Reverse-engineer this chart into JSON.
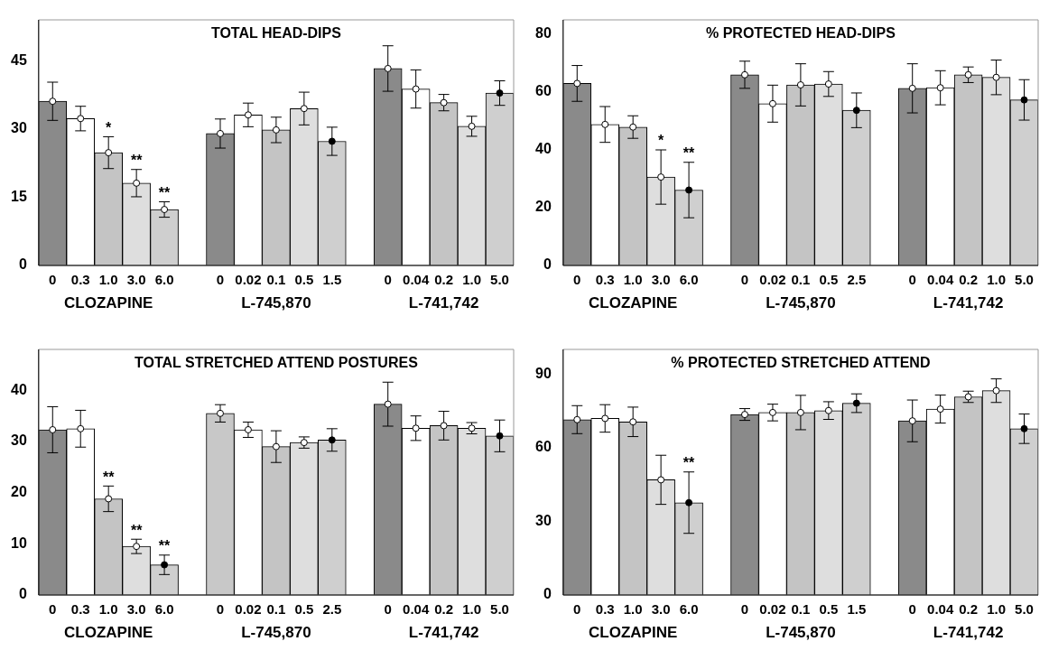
{
  "chart_data": [
    {
      "type": "bar",
      "title": "TOTAL HEAD-DIPS",
      "categories": [
        "0",
        "0.3",
        "1.0",
        "3.0",
        "6.0",
        null,
        "0",
        "0.02",
        "0.1",
        "0.5",
        "1.5",
        null,
        "0",
        "0.04",
        "0.2",
        "1.0",
        "5.0"
      ],
      "series": [
        {
          "type": "bar",
          "colors": [
            "#8a8a8a",
            "#ffffff",
            "#c4c4c4",
            "#dedede",
            "#cfcfcf",
            null,
            "#8a8a8a",
            "#ffffff",
            "#c4c4c4",
            "#dedede",
            "#cfcfcf",
            null,
            "#8a8a8a",
            "#ffffff",
            "#c4c4c4",
            "#dedede",
            "#cfcfcf"
          ],
          "values": [
            36.1,
            32.3,
            24.8,
            18.1,
            12.3,
            null,
            29.0,
            33.1,
            29.8,
            34.5,
            27.3,
            null,
            43.3,
            38.8,
            35.8,
            30.6,
            37.9
          ],
          "errors": [
            4.2,
            2.7,
            3.5,
            3.0,
            1.7,
            null,
            3.2,
            2.6,
            2.8,
            3.6,
            3.1,
            null,
            5.0,
            4.2,
            1.8,
            2.2,
            2.7
          ],
          "value_labels": [
            null,
            null,
            "*",
            "**",
            "**",
            null,
            null,
            null,
            null,
            null,
            null,
            null,
            null,
            null,
            null,
            null,
            null
          ]
        },
        {
          "type": "scatter",
          "colors": [
            "#ffffff",
            "#ffffff",
            "#ffffff",
            "#ffffff",
            "#ffffff",
            null,
            "#ffffff",
            "#ffffff",
            "#ffffff",
            "#ffffff",
            "#000000",
            null,
            "#ffffff",
            "#ffffff",
            "#ffffff",
            "#ffffff",
            "#000000"
          ],
          "values": [
            36.1,
            32.3,
            24.8,
            18.1,
            12.3,
            null,
            29.0,
            33.1,
            29.8,
            34.5,
            27.3,
            null,
            43.3,
            38.8,
            35.8,
            30.6,
            37.9
          ]
        }
      ],
      "ylim": [
        0,
        54
      ],
      "yticks": [
        0,
        15,
        30,
        45
      ],
      "grid": false,
      "legend": false,
      "marker": "circle",
      "annotations": [
        "CLOZAPINE",
        "L-745,870",
        "L-741,742"
      ]
    },
    {
      "type": "bar",
      "title": "% PROTECTED HEAD-DIPS",
      "categories": [
        "0",
        "0.3",
        "1.0",
        "3.0",
        "6.0",
        null,
        "0",
        "0.02",
        "0.1",
        "0.5",
        "2.5",
        null,
        "0",
        "0.04",
        "0.2",
        "1.0",
        "5.0"
      ],
      "series": [
        {
          "type": "bar",
          "colors": [
            "#8a8a8a",
            "#ffffff",
            "#c4c4c4",
            "#dedede",
            "#cfcfcf",
            null,
            "#8a8a8a",
            "#ffffff",
            "#c4c4c4",
            "#dedede",
            "#cfcfcf",
            null,
            "#8a8a8a",
            "#ffffff",
            "#c4c4c4",
            "#dedede",
            "#cfcfcf"
          ],
          "values": [
            63.0,
            48.8,
            47.9,
            30.6,
            26.1,
            null,
            66.0,
            56.0,
            62.5,
            62.8,
            53.7,
            null,
            61.3,
            61.5,
            66.0,
            65.1,
            57.3
          ],
          "errors": [
            6.2,
            6.2,
            3.9,
            9.4,
            9.6,
            null,
            4.7,
            6.4,
            7.3,
            4.3,
            6.0,
            null,
            8.5,
            5.9,
            2.7,
            6.0,
            7.0
          ],
          "value_labels": [
            null,
            null,
            null,
            "*",
            "**",
            null,
            null,
            null,
            null,
            null,
            null,
            null,
            null,
            null,
            null,
            null,
            null
          ]
        },
        {
          "type": "scatter",
          "colors": [
            "#ffffff",
            "#ffffff",
            "#ffffff",
            "#ffffff",
            "#000000",
            null,
            "#ffffff",
            "#ffffff",
            "#ffffff",
            "#ffffff",
            "#000000",
            null,
            "#ffffff",
            "#ffffff",
            "#ffffff",
            "#ffffff",
            "#000000"
          ],
          "values": [
            63.0,
            48.8,
            47.9,
            30.6,
            26.1,
            null,
            66.0,
            56.0,
            62.5,
            62.8,
            53.7,
            null,
            61.3,
            61.5,
            66.0,
            65.1,
            57.3
          ]
        }
      ],
      "ylim": [
        0,
        85
      ],
      "yticks": [
        0,
        20,
        40,
        60,
        80
      ],
      "grid": false,
      "legend": false,
      "marker": "circle",
      "annotations": [
        "CLOZAPINE",
        "L-745,870",
        "L-741,742"
      ]
    },
    {
      "type": "bar",
      "title": "TOTAL STRETCHED ATTEND POSTURES",
      "categories": [
        "0",
        "0.3",
        "1.0",
        "3.0",
        "6.0",
        null,
        "0",
        "0.02",
        "0.1",
        "0.5",
        "2.5",
        null,
        "0",
        "0.04",
        "0.2",
        "1.0",
        "5.0"
      ],
      "series": [
        {
          "type": "bar",
          "colors": [
            "#8a8a8a",
            "#ffffff",
            "#c4c4c4",
            "#dedede",
            "#cfcfcf",
            null,
            "#c8c8c8",
            "#ffffff",
            "#c4c4c4",
            "#dedede",
            "#cfcfcf",
            null,
            "#8a8a8a",
            "#ffffff",
            "#c4c4c4",
            "#dedede",
            "#cfcfcf"
          ],
          "values": [
            32.3,
            32.5,
            18.8,
            9.5,
            5.9,
            null,
            35.5,
            32.3,
            29.0,
            29.8,
            30.3,
            null,
            37.3,
            32.6,
            33.1,
            32.6,
            31.1
          ],
          "errors": [
            4.5,
            3.6,
            2.5,
            1.4,
            1.9,
            null,
            1.7,
            1.5,
            3.1,
            1.1,
            2.2,
            null,
            4.3,
            2.4,
            2.8,
            1.1,
            3.1
          ],
          "value_labels": [
            null,
            null,
            "**",
            "**",
            "**",
            null,
            null,
            null,
            null,
            null,
            null,
            null,
            null,
            null,
            null,
            null,
            null
          ]
        },
        {
          "type": "scatter",
          "colors": [
            "#ffffff",
            "#ffffff",
            "#ffffff",
            "#ffffff",
            "#000000",
            null,
            "#ffffff",
            "#ffffff",
            "#ffffff",
            "#ffffff",
            "#000000",
            null,
            "#ffffff",
            "#ffffff",
            "#ffffff",
            "#ffffff",
            "#000000"
          ],
          "values": [
            32.3,
            32.5,
            18.8,
            9.5,
            5.9,
            null,
            35.5,
            32.3,
            29.0,
            29.8,
            30.3,
            null,
            37.3,
            32.6,
            33.1,
            32.6,
            31.1
          ]
        }
      ],
      "ylim": [
        0,
        48
      ],
      "yticks": [
        0,
        10,
        20,
        30,
        40
      ],
      "grid": false,
      "legend": false,
      "marker": "circle",
      "annotations": [
        "CLOZAPINE",
        "L-745,870",
        "L-741,742"
      ]
    },
    {
      "type": "bar",
      "title": "% PROTECTED STRETCHED ATTEND",
      "categories": [
        "0",
        "0.3",
        "1.0",
        "3.0",
        "6.0",
        null,
        "0",
        "0.02",
        "0.1",
        "0.5",
        "1.5",
        null,
        "0",
        "0.04",
        "0.2",
        "1.0",
        "5.0"
      ],
      "series": [
        {
          "type": "bar",
          "colors": [
            "#8a8a8a",
            "#ffffff",
            "#c4c4c4",
            "#dedede",
            "#cfcfcf",
            null,
            "#8a8a8a",
            "#ffffff",
            "#c4c4c4",
            "#dedede",
            "#cfcfcf",
            null,
            "#8a8a8a",
            "#ffffff",
            "#c4c4c4",
            "#dedede",
            "#cfcfcf"
          ],
          "values": [
            71.4,
            71.9,
            70.5,
            46.9,
            37.6,
            null,
            73.5,
            74.3,
            74.3,
            75.1,
            78.1,
            null,
            70.9,
            75.7,
            80.7,
            83.2,
            67.7
          ],
          "errors": [
            5.7,
            5.6,
            6.0,
            10.0,
            12.5,
            null,
            2.4,
            3.4,
            7.0,
            3.6,
            3.8,
            null,
            8.5,
            5.7,
            2.3,
            4.8,
            6.0
          ],
          "value_labels": [
            null,
            null,
            null,
            null,
            "**",
            null,
            null,
            null,
            null,
            null,
            null,
            null,
            null,
            null,
            null,
            null,
            null
          ]
        },
        {
          "type": "scatter",
          "colors": [
            "#ffffff",
            "#ffffff",
            "#ffffff",
            "#ffffff",
            "#000000",
            null,
            "#ffffff",
            "#ffffff",
            "#ffffff",
            "#ffffff",
            "#000000",
            null,
            "#ffffff",
            "#ffffff",
            "#ffffff",
            "#ffffff",
            "#000000"
          ],
          "values": [
            71.4,
            71.9,
            70.5,
            46.9,
            37.6,
            null,
            73.5,
            74.3,
            74.3,
            75.1,
            78.1,
            null,
            70.9,
            75.7,
            80.7,
            83.2,
            67.7
          ]
        }
      ],
      "ylim": [
        0,
        100
      ],
      "yticks": [
        0,
        30,
        60,
        90
      ],
      "grid": false,
      "legend": false,
      "marker": "circle",
      "annotations": [
        "CLOZAPINE",
        "L-745,870",
        "L-741,742"
      ]
    }
  ]
}
